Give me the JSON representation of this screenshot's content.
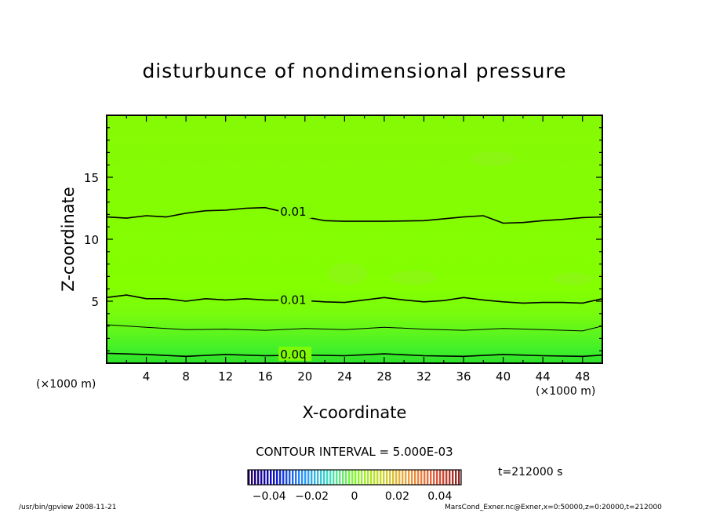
{
  "chart_data": {
    "type": "contour",
    "title": "disturbunce of nondimensional pressure",
    "xlabel": "X-coordinate",
    "ylabel": "Z-coordinate",
    "x_unit_left": "(×1000 m)",
    "x_unit_right": "(×1000 m)",
    "xlim": [
      0,
      50
    ],
    "ylim": [
      0,
      20
    ],
    "x_ticks": [
      4,
      8,
      12,
      16,
      20,
      24,
      28,
      32,
      36,
      40,
      44,
      48
    ],
    "y_ticks": [
      5,
      10,
      15
    ],
    "contour_interval_text": "CONTOUR INTERVAL = 5.000E-03",
    "time_text": "t=212000 s",
    "contours": [
      {
        "level": 0.0,
        "label": "0.00",
        "label_x": 17.5,
        "label_y": 0.7,
        "x": [
          0,
          4,
          8,
          12,
          16,
          20,
          24,
          28,
          32,
          36,
          40,
          44,
          48,
          50
        ],
        "z": [
          0.8,
          0.7,
          0.55,
          0.7,
          0.6,
          0.65,
          0.6,
          0.75,
          0.6,
          0.55,
          0.7,
          0.6,
          0.55,
          0.65
        ]
      },
      {
        "level": 0.005,
        "label": "",
        "x": [
          0,
          4,
          8,
          12,
          16,
          20,
          24,
          28,
          32,
          36,
          40,
          44,
          48,
          50
        ],
        "z": [
          3.1,
          2.9,
          2.7,
          2.75,
          2.65,
          2.8,
          2.7,
          2.9,
          2.75,
          2.65,
          2.8,
          2.7,
          2.6,
          3.0
        ]
      },
      {
        "level": 0.01,
        "label": "0.01",
        "label_x": 17.5,
        "label_y": 5.1,
        "x": [
          0,
          2,
          4,
          6,
          8,
          10,
          12,
          14,
          16,
          20,
          22,
          24,
          26,
          28,
          30,
          32,
          34,
          36,
          38,
          40,
          42,
          44,
          46,
          48,
          50
        ],
        "z": [
          5.3,
          5.5,
          5.2,
          5.2,
          5.0,
          5.2,
          5.1,
          5.2,
          5.1,
          5.05,
          4.95,
          4.9,
          5.1,
          5.3,
          5.1,
          4.95,
          5.05,
          5.3,
          5.1,
          4.95,
          4.85,
          4.9,
          4.9,
          4.85,
          5.2
        ]
      },
      {
        "level": 0.01,
        "label": "0.01",
        "label_x": 17.5,
        "label_y": 12.2,
        "x": [
          0,
          2,
          4,
          6,
          8,
          10,
          12,
          14,
          16,
          20,
          22,
          24,
          28,
          32,
          36,
          38,
          40,
          42,
          44,
          46,
          48,
          50
        ],
        "z": [
          11.8,
          11.7,
          11.9,
          11.8,
          12.1,
          12.3,
          12.35,
          12.5,
          12.55,
          11.8,
          11.5,
          11.45,
          11.45,
          11.5,
          11.8,
          11.9,
          11.3,
          11.35,
          11.5,
          11.6,
          11.75,
          11.8
        ]
      }
    ],
    "colorbar": {
      "min": -0.05,
      "max": 0.05,
      "tick_values": [
        -0.04,
        -0.02,
        0,
        0.02,
        0.04
      ],
      "tick_labels": [
        "−0.04",
        "−0.02",
        "0",
        "0.02",
        "0.04"
      ]
    }
  },
  "footer": {
    "left": "/usr/bin/gpview   2008-11-21",
    "right": "MarsCond_Exner.nc@Exner,x=0:50000,z=0:20000,t=212000"
  }
}
